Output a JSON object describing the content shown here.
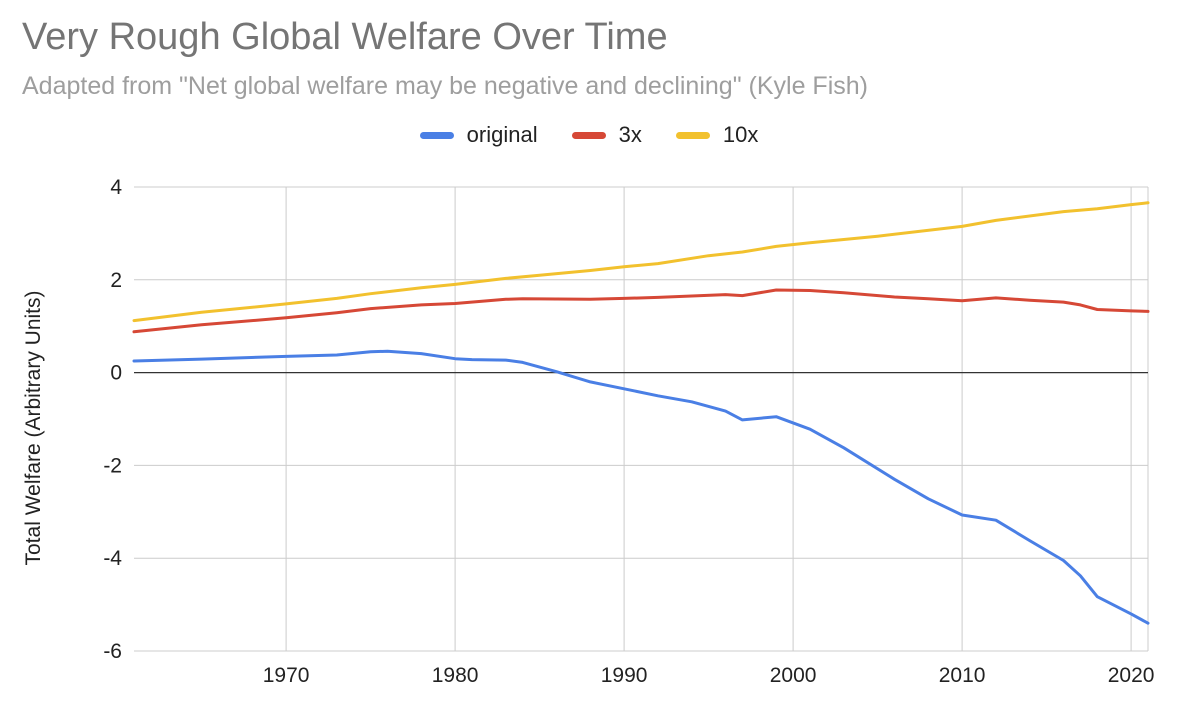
{
  "chart_data": {
    "type": "line",
    "title": "Very Rough Global Welfare Over Time",
    "subtitle": "Adapted from \"Net global welfare may be negative and declining\" (Kyle Fish)",
    "xlabel": "",
    "ylabel": "Total Welfare (Arbitrary Units)",
    "xlim": [
      1961,
      2021
    ],
    "ylim": [
      -6,
      4
    ],
    "x_ticks": [
      1970,
      1980,
      1990,
      2000,
      2010,
      2020
    ],
    "y_ticks": [
      4,
      2,
      0,
      -2,
      -4,
      -6
    ],
    "grid": true,
    "legend_position": "top-center",
    "series": [
      {
        "name": "original",
        "color": "#4a7fe5",
        "points": [
          [
            1961,
            0.25
          ],
          [
            1965,
            0.29
          ],
          [
            1970,
            0.35
          ],
          [
            1973,
            0.38
          ],
          [
            1975,
            0.45
          ],
          [
            1976,
            0.46
          ],
          [
            1978,
            0.41
          ],
          [
            1980,
            0.3
          ],
          [
            1981,
            0.28
          ],
          [
            1983,
            0.27
          ],
          [
            1984,
            0.22
          ],
          [
            1986,
            0.02
          ],
          [
            1988,
            -0.2
          ],
          [
            1990,
            -0.35
          ],
          [
            1992,
            -0.5
          ],
          [
            1994,
            -0.63
          ],
          [
            1996,
            -0.83
          ],
          [
            1997,
            -1.02
          ],
          [
            1999,
            -0.95
          ],
          [
            2001,
            -1.22
          ],
          [
            2003,
            -1.62
          ],
          [
            2006,
            -2.3
          ],
          [
            2008,
            -2.72
          ],
          [
            2010,
            -3.07
          ],
          [
            2012,
            -3.18
          ],
          [
            2014,
            -3.62
          ],
          [
            2016,
            -4.05
          ],
          [
            2017,
            -4.38
          ],
          [
            2018,
            -4.83
          ],
          [
            2020,
            -5.2
          ],
          [
            2021,
            -5.4
          ]
        ]
      },
      {
        "name": "3x",
        "color": "#d64836",
        "points": [
          [
            1961,
            0.88
          ],
          [
            1965,
            1.03
          ],
          [
            1970,
            1.18
          ],
          [
            1973,
            1.29
          ],
          [
            1975,
            1.38
          ],
          [
            1978,
            1.46
          ],
          [
            1980,
            1.49
          ],
          [
            1983,
            1.58
          ],
          [
            1984,
            1.59
          ],
          [
            1988,
            1.58
          ],
          [
            1990,
            1.6
          ],
          [
            1992,
            1.62
          ],
          [
            1994,
            1.65
          ],
          [
            1996,
            1.68
          ],
          [
            1997,
            1.66
          ],
          [
            1999,
            1.78
          ],
          [
            2001,
            1.77
          ],
          [
            2003,
            1.72
          ],
          [
            2006,
            1.63
          ],
          [
            2008,
            1.59
          ],
          [
            2010,
            1.55
          ],
          [
            2012,
            1.61
          ],
          [
            2014,
            1.56
          ],
          [
            2016,
            1.52
          ],
          [
            2017,
            1.46
          ],
          [
            2018,
            1.36
          ],
          [
            2020,
            1.33
          ],
          [
            2021,
            1.32
          ]
        ]
      },
      {
        "name": "10x",
        "color": "#f2c12e",
        "points": [
          [
            1961,
            1.12
          ],
          [
            1965,
            1.3
          ],
          [
            1970,
            1.48
          ],
          [
            1973,
            1.6
          ],
          [
            1975,
            1.7
          ],
          [
            1978,
            1.83
          ],
          [
            1980,
            1.9
          ],
          [
            1983,
            2.03
          ],
          [
            1985,
            2.1
          ],
          [
            1988,
            2.2
          ],
          [
            1990,
            2.28
          ],
          [
            1992,
            2.35
          ],
          [
            1995,
            2.52
          ],
          [
            1997,
            2.6
          ],
          [
            1999,
            2.72
          ],
          [
            2001,
            2.8
          ],
          [
            2005,
            2.94
          ],
          [
            2010,
            3.15
          ],
          [
            2012,
            3.28
          ],
          [
            2016,
            3.47
          ],
          [
            2018,
            3.53
          ],
          [
            2020,
            3.62
          ],
          [
            2021,
            3.66
          ]
        ]
      }
    ]
  }
}
